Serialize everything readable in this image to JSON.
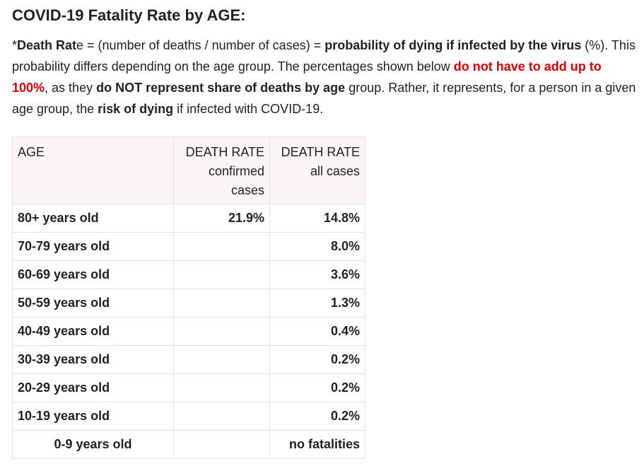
{
  "title": "COVID-19 Fatality Rate by AGE:",
  "intro": {
    "p1_star": "*",
    "p1_bold1": "Death Rat",
    "p1_t1": "e = (number of deaths / number of cases) = ",
    "p1_bold2": "probability of dying if infected by the virus",
    "p1_t2": " (%). This probability differs depending on the age group. The percentages shown below ",
    "p1_red": "do not have to add up to 100%",
    "p1_t3": ", as they ",
    "p1_bold3": "do NOT represent share of deaths by age",
    "p1_t4": " group. Rather, it represents, for a person in a given age group, the ",
    "p1_bold4": "risk of dying",
    "p1_t5": " if infected with COVID-19."
  },
  "table": {
    "headers": {
      "age": "AGE",
      "rate_confirmed_line1": "DEATH RATE",
      "rate_confirmed_line2": "confirmed",
      "rate_confirmed_line3": "cases",
      "rate_all_line1": "DEATH RATE",
      "rate_all_line2": "all cases"
    },
    "rows": [
      {
        "age": "80+ years old",
        "confirmed": "21.9%",
        "all": "14.8%"
      },
      {
        "age": "70-79 years old",
        "confirmed": "",
        "all": "8.0%"
      },
      {
        "age": "60-69 years old",
        "confirmed": "",
        "all": "3.6%"
      },
      {
        "age": "50-59 years old",
        "confirmed": "",
        "all": "1.3%"
      },
      {
        "age": "40-49 years old",
        "confirmed": "",
        "all": "0.4%"
      },
      {
        "age": "30-39 years old",
        "confirmed": "",
        "all": "0.2%"
      },
      {
        "age": "20-29 years old",
        "confirmed": "",
        "all": "0.2%"
      },
      {
        "age": "10-19 years old",
        "confirmed": "",
        "all": "0.2%"
      },
      {
        "age": "0-9 years old",
        "confirmed": "",
        "all": "no fatalities"
      }
    ]
  },
  "colors": {
    "text": "#222222",
    "highlight_red": "#dd0000",
    "header_bg": "#fbf6f5",
    "border": "#e2e2e2"
  }
}
